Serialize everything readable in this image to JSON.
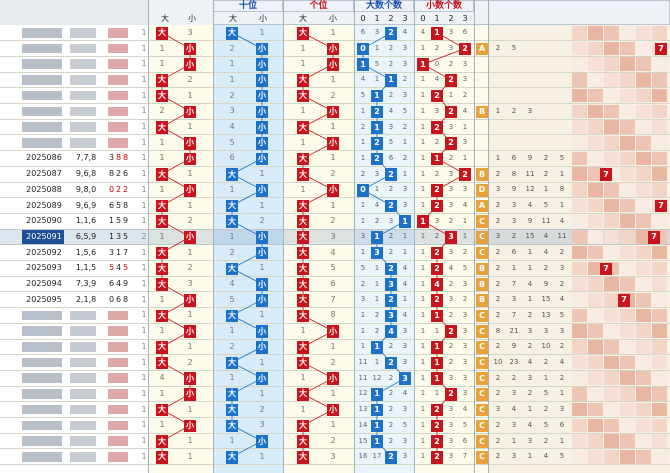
{
  "headers": {
    "tens": "十位",
    "units": "个位",
    "big_count": "大数个数",
    "small_count": "小数个数",
    "big": "大",
    "small": "小",
    "count_digits": [
      "0",
      "1",
      "2",
      "3"
    ]
  },
  "selected_issue": "2025091",
  "rows": [
    {
      "issue": "",
      "sum": "",
      "num": ""
    },
    {
      "issue": "",
      "sum": "",
      "num": ""
    },
    {
      "issue": "",
      "sum": "",
      "num": ""
    },
    {
      "issue": "",
      "sum": "",
      "num": ""
    },
    {
      "issue": "",
      "sum": "",
      "num": ""
    },
    {
      "issue": "",
      "sum": "",
      "num": ""
    },
    {
      "issue": "",
      "sum": "",
      "num": ""
    },
    {
      "issue": "",
      "sum": "",
      "num": ""
    },
    {
      "issue": "2025086",
      "sum": "7,7,8",
      "num": "388"
    },
    {
      "issue": "2025087",
      "sum": "9,6,8",
      "num": "826"
    },
    {
      "issue": "2025088",
      "sum": "9,8,0",
      "num": "022"
    },
    {
      "issue": "2025089",
      "sum": "9,6,9",
      "num": "658"
    },
    {
      "issue": "2025090",
      "sum": "1,1,6",
      "num": "159"
    },
    {
      "issue": "2025091",
      "sum": "6,5,9",
      "num": "135"
    },
    {
      "issue": "2025092",
      "sum": "1,5,6",
      "num": "317"
    },
    {
      "issue": "2025093",
      "sum": "1,1,5",
      "num": "545"
    },
    {
      "issue": "2025094",
      "sum": "7,3,9",
      "num": "649"
    },
    {
      "issue": "2025095",
      "sum": "2,1,8",
      "num": "068"
    },
    {
      "issue": "",
      "sum": "",
      "num": ""
    },
    {
      "issue": "",
      "sum": "",
      "num": ""
    },
    {
      "issue": "",
      "sum": "",
      "num": ""
    },
    {
      "issue": "",
      "sum": "",
      "num": ""
    },
    {
      "issue": "",
      "sum": "",
      "num": ""
    },
    {
      "issue": "",
      "sum": "",
      "num": ""
    },
    {
      "issue": "",
      "sum": "",
      "num": ""
    },
    {
      "issue": "",
      "sum": "",
      "num": ""
    },
    {
      "issue": "",
      "sum": "",
      "num": ""
    },
    {
      "issue": "",
      "sum": "",
      "num": ""
    }
  ],
  "num_colors": {
    "2025086": [
      "#222222",
      "#cc0000",
      "#cc0000"
    ],
    "2025087": [
      "#222222",
      "#222222",
      "#222222"
    ],
    "2025088": [
      "#cc0000",
      "#cc0000",
      "#cc0000"
    ],
    "2025089": [
      "#222222",
      "#222222",
      "#222222"
    ],
    "2025090": [
      "#222222",
      "#222222",
      "#222222"
    ],
    "2025091": [
      "#222222",
      "#222222",
      "#222222"
    ],
    "2025092": [
      "#222222",
      "#222222",
      "#222222"
    ],
    "2025093": [
      "#cc0000",
      "#222222",
      "#cc0000"
    ],
    "2025094": [
      "#222222",
      "#222222",
      "#222222"
    ],
    "2025095": [
      "#222222",
      "#222222",
      "#222222"
    ]
  },
  "col1_values": [
    "1",
    "1",
    "1",
    "1",
    "1",
    "1",
    "1",
    "1",
    "1",
    "1",
    "1",
    "1",
    "1",
    "2",
    "1",
    "1",
    "1",
    "1",
    "1",
    "1",
    "1",
    "1",
    "1",
    "1",
    "1",
    "1",
    "1",
    "1"
  ],
  "col2": [
    {
      "t": "大",
      "v": "3"
    },
    {
      "t": "小",
      "v": "1"
    },
    {
      "t": "小",
      "v": "1"
    },
    {
      "t": "大",
      "v": "2"
    },
    {
      "t": "大",
      "v": "1"
    },
    {
      "t": "小",
      "v": "2"
    },
    {
      "t": "大",
      "v": "1"
    },
    {
      "t": "小",
      "v": "1"
    },
    {
      "t": "小",
      "v": "1"
    },
    {
      "t": "大",
      "v": "1"
    },
    {
      "t": "小",
      "v": "1"
    },
    {
      "t": "大",
      "v": "1"
    },
    {
      "t": "大",
      "v": "2"
    },
    {
      "t": "小",
      "v": "1"
    },
    {
      "t": "大",
      "v": "1"
    },
    {
      "t": "大",
      "v": "2"
    },
    {
      "t": "大",
      "v": "3"
    },
    {
      "t": "小",
      "v": "1"
    },
    {
      "t": "大",
      "v": "1"
    },
    {
      "t": "小",
      "v": "1"
    },
    {
      "t": "大",
      "v": "1"
    },
    {
      "t": "大",
      "v": "2"
    },
    {
      "t": "小",
      "v": "4"
    },
    {
      "t": "小",
      "v": "1"
    },
    {
      "t": "大",
      "v": "1"
    },
    {
      "t": "小",
      "v": "1"
    },
    {
      "t": "大",
      "v": "1"
    },
    {
      "t": "大",
      "v": "1"
    }
  ],
  "tens": [
    {
      "t": "大",
      "v": "1"
    },
    {
      "t": "小",
      "v": "2"
    },
    {
      "t": "小",
      "v": "1"
    },
    {
      "t": "小",
      "v": "1"
    },
    {
      "t": "小",
      "v": "2"
    },
    {
      "t": "小",
      "v": "3"
    },
    {
      "t": "小",
      "v": "4"
    },
    {
      "t": "小",
      "v": "5"
    },
    {
      "t": "小",
      "v": "6"
    },
    {
      "t": "大",
      "v": "1"
    },
    {
      "t": "小",
      "v": "1"
    },
    {
      "t": "大",
      "v": "1"
    },
    {
      "t": "大",
      "v": "2"
    },
    {
      "t": "小",
      "v": "1"
    },
    {
      "t": "小",
      "v": "2"
    },
    {
      "t": "大",
      "v": "1"
    },
    {
      "t": "小",
      "v": "4"
    },
    {
      "t": "小",
      "v": "5"
    },
    {
      "t": "大",
      "v": "1"
    },
    {
      "t": "小",
      "v": "1"
    },
    {
      "t": "小",
      "v": "2"
    },
    {
      "t": "大",
      "v": "1"
    },
    {
      "t": "小",
      "v": "1"
    },
    {
      "t": "大",
      "v": "1"
    },
    {
      "t": "大",
      "v": "2"
    },
    {
      "t": "大",
      "v": "3"
    },
    {
      "t": "小",
      "v": "1"
    },
    {
      "t": "大",
      "v": "1"
    }
  ],
  "units": [
    {
      "t": "大",
      "v": "1"
    },
    {
      "t": "小",
      "v": "1"
    },
    {
      "t": "小",
      "v": "1"
    },
    {
      "t": "大",
      "v": "1"
    },
    {
      "t": "大",
      "v": "2"
    },
    {
      "t": "小",
      "v": "1"
    },
    {
      "t": "大",
      "v": "1"
    },
    {
      "t": "小",
      "v": "1"
    },
    {
      "t": "大",
      "v": "1"
    },
    {
      "t": "大",
      "v": "2"
    },
    {
      "t": "小",
      "v": "1"
    },
    {
      "t": "大",
      "v": "1"
    },
    {
      "t": "大",
      "v": "2"
    },
    {
      "t": "大",
      "v": "3"
    },
    {
      "t": "大",
      "v": "4"
    },
    {
      "t": "大",
      "v": "5"
    },
    {
      "t": "大",
      "v": "6"
    },
    {
      "t": "大",
      "v": "7"
    },
    {
      "t": "大",
      "v": "8"
    },
    {
      "t": "小",
      "v": "1"
    },
    {
      "t": "大",
      "v": "1"
    },
    {
      "t": "大",
      "v": "2"
    },
    {
      "t": "小",
      "v": "1"
    },
    {
      "t": "大",
      "v": "1"
    },
    {
      "t": "小",
      "v": "1"
    },
    {
      "t": "大",
      "v": "1"
    },
    {
      "t": "大",
      "v": "2"
    },
    {
      "t": "大",
      "v": "3"
    }
  ],
  "big_counts": [
    2,
    0,
    0,
    2,
    1,
    1,
    1,
    1,
    1,
    2,
    0,
    2,
    3,
    1,
    1,
    2,
    2,
    2,
    2,
    2,
    1,
    2,
    3,
    1,
    1,
    1,
    1,
    2
  ],
  "small_counts": [
    1,
    3,
    0,
    2,
    1,
    2,
    1,
    2,
    1,
    3,
    1,
    1,
    0,
    2,
    1,
    1,
    1,
    1,
    1,
    2,
    1,
    1,
    1,
    2,
    1,
    1,
    1,
    1
  ],
  "big_grid": [
    [
      "6",
      "3",
      "2",
      "4"
    ],
    [
      "0",
      "1",
      "2",
      "3"
    ],
    [
      "1",
      "5",
      "2",
      "3"
    ],
    [
      "4",
      "1",
      "1",
      "2"
    ],
    [
      "5",
      "1",
      "2",
      "3"
    ],
    [
      "1",
      "2",
      "4",
      "5"
    ],
    [
      "2",
      "1",
      "3",
      "2"
    ],
    [
      "1",
      "2",
      "5",
      "1"
    ],
    [
      "1",
      "2",
      "6",
      "2"
    ],
    [
      "2",
      "3",
      "2",
      "1"
    ],
    [
      "0",
      "1",
      "2",
      "3"
    ],
    [
      "1",
      "4",
      "2",
      "3"
    ],
    [
      "1",
      "2",
      "3",
      "1"
    ],
    [
      "3",
      "1",
      "2",
      "1"
    ],
    [
      "1",
      "3",
      "2",
      "1"
    ],
    [
      "5",
      "1",
      "2",
      "4"
    ],
    [
      "2",
      "1",
      "3",
      "4"
    ],
    [
      "3",
      "1",
      "2",
      "1"
    ],
    [
      "1",
      "2",
      "3",
      "4"
    ],
    [
      "1",
      "2",
      "4",
      "3"
    ],
    [
      "1",
      "1",
      "2",
      "3"
    ],
    [
      "11",
      "1",
      "2",
      "3"
    ],
    [
      "11",
      "12",
      "2",
      "3"
    ],
    [
      "12",
      "1",
      "2",
      "4"
    ],
    [
      "13",
      "1",
      "2",
      "3"
    ],
    [
      "14",
      "1",
      "2",
      "5"
    ],
    [
      "15",
      "1",
      "2",
      "3"
    ],
    [
      "16",
      "17",
      "2",
      "3"
    ]
  ],
  "small_grid": [
    [
      "4",
      "1",
      "3",
      "6"
    ],
    [
      "1",
      "2",
      "3",
      "2"
    ],
    [
      "1",
      "0",
      "2",
      "3"
    ],
    [
      "1",
      "4",
      "2",
      "3"
    ],
    [
      "1",
      "2",
      "1",
      "2"
    ],
    [
      "1",
      "3",
      "2",
      "4"
    ],
    [
      "1",
      "2",
      "3",
      "1"
    ],
    [
      "1",
      "2",
      "2",
      "3"
    ],
    [
      "1",
      "1",
      "2",
      "1"
    ],
    [
      "1",
      "2",
      "3",
      "2"
    ],
    [
      "1",
      "2",
      "3",
      "3"
    ],
    [
      "1",
      "2",
      "3",
      "4"
    ],
    [
      "1",
      "3",
      "2",
      "1"
    ],
    [
      "1",
      "2",
      "3",
      "1"
    ],
    [
      "1",
      "2",
      "3",
      "2"
    ],
    [
      "1",
      "2",
      "4",
      "5"
    ],
    [
      "1",
      "4",
      "2",
      "3"
    ],
    [
      "1",
      "2",
      "3",
      "2"
    ],
    [
      "1",
      "1",
      "2",
      "3"
    ],
    [
      "1",
      "1",
      "2",
      "3"
    ],
    [
      "1",
      "1",
      "2",
      "3"
    ],
    [
      "1",
      "1",
      "2",
      "3"
    ],
    [
      "1",
      "1",
      "3",
      "3"
    ],
    [
      "1",
      "1",
      "2",
      "3"
    ],
    [
      "1",
      "2",
      "3",
      "4"
    ],
    [
      "1",
      "2",
      "3",
      "5"
    ],
    [
      "1",
      "2",
      "3",
      "6"
    ],
    [
      "1",
      "2",
      "3",
      "7"
    ]
  ],
  "mid_values": [
    [
      "",
      "",
      "",
      "",
      "",
      ""
    ],
    [
      "A",
      "2",
      "5",
      "",
      "",
      ""
    ],
    [
      "",
      "",
      "",
      "",
      "",
      ""
    ],
    [
      "",
      "",
      "",
      "",
      "",
      ""
    ],
    [
      "",
      "",
      "",
      "",
      "",
      ""
    ],
    [
      "B",
      "1",
      "2",
      "3",
      "",
      ""
    ],
    [
      "",
      "",
      "",
      "",
      "",
      ""
    ],
    [
      "",
      "",
      "",
      "",
      "",
      ""
    ],
    [
      "",
      "1",
      "6",
      "9",
      "2",
      "5"
    ],
    [
      "B",
      "2",
      "8",
      "11",
      "2",
      "1"
    ],
    [
      "D",
      "3",
      "9",
      "12",
      "1",
      "8"
    ],
    [
      "A",
      "2",
      "3",
      "4",
      "5",
      "1"
    ],
    [
      "C",
      "2",
      "3",
      "9",
      "11",
      "4"
    ],
    [
      "C",
      "3",
      "2",
      "15",
      "4",
      "11"
    ],
    [
      "C",
      "2",
      "6",
      "1",
      "4",
      "2"
    ],
    [
      "B",
      "2",
      "1",
      "1",
      "2",
      "3"
    ],
    [
      "B",
      "2",
      "7",
      "4",
      "9",
      "2"
    ],
    [
      "B",
      "2",
      "3",
      "1",
      "15",
      "4"
    ],
    [
      "C",
      "2",
      "7",
      "2",
      "13",
      "5"
    ],
    [
      "C",
      "8",
      "21",
      "3",
      "3",
      "3"
    ],
    [
      "C",
      "2",
      "9",
      "2",
      "10",
      "2"
    ],
    [
      "C",
      "10",
      "23",
      "4",
      "2",
      "4"
    ],
    [
      "C",
      "2",
      "2",
      "3",
      "1",
      "2"
    ],
    [
      "C",
      "2",
      "3",
      "2",
      "5",
      "1"
    ],
    [
      "C",
      "3",
      "4",
      "1",
      "2",
      "3"
    ],
    [
      "C",
      "2",
      "3",
      "4",
      "5",
      "6"
    ],
    [
      "C",
      "2",
      "1",
      "3",
      "2",
      "1"
    ],
    [
      "C",
      "2",
      "3",
      "1",
      "4",
      "5"
    ]
  ]
}
